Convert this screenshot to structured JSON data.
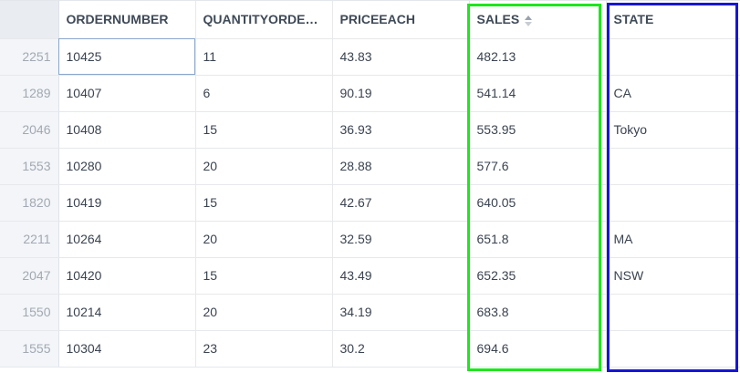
{
  "columns": [
    {
      "key": "ORDERNUMBER",
      "label": "ORDERNUMBER"
    },
    {
      "key": "QUANTITYORDERED",
      "label": "QUANTITYORDERE…"
    },
    {
      "key": "PRICEEACH",
      "label": "PRICEEACH"
    },
    {
      "key": "SALES",
      "label": "SALES",
      "sort": "ascending"
    },
    {
      "key": "STATE",
      "label": "STATE"
    }
  ],
  "rows": [
    {
      "index": "2251",
      "ordernumber": "10425",
      "quantity": "11",
      "price": "43.83",
      "sales": "482.13",
      "state": ""
    },
    {
      "index": "1289",
      "ordernumber": "10407",
      "quantity": "6",
      "price": "90.19",
      "sales": "541.14",
      "state": "CA"
    },
    {
      "index": "2046",
      "ordernumber": "10408",
      "quantity": "15",
      "price": "36.93",
      "sales": "553.95",
      "state": "Tokyo"
    },
    {
      "index": "1553",
      "ordernumber": "10280",
      "quantity": "20",
      "price": "28.88",
      "sales": "577.6",
      "state": ""
    },
    {
      "index": "1820",
      "ordernumber": "10419",
      "quantity": "15",
      "price": "42.67",
      "sales": "640.05",
      "state": ""
    },
    {
      "index": "2211",
      "ordernumber": "10264",
      "quantity": "20",
      "price": "32.59",
      "sales": "651.8",
      "state": "MA"
    },
    {
      "index": "2047",
      "ordernumber": "10420",
      "quantity": "15",
      "price": "43.49",
      "sales": "652.35",
      "state": "NSW"
    },
    {
      "index": "1550",
      "ordernumber": "10214",
      "quantity": "20",
      "price": "34.19",
      "sales": "683.8",
      "state": ""
    },
    {
      "index": "1555",
      "ordernumber": "10304",
      "quantity": "23",
      "price": "30.2",
      "sales": "694.6",
      "state": ""
    }
  ],
  "selected_cell": {
    "row": 0,
    "column": "ORDERNUMBER"
  },
  "highlights": {
    "sales_column_color": "#1fe61f",
    "state_column_color": "#1616d6"
  },
  "icons": {
    "sales_sort": "sort-ascending-icon"
  }
}
